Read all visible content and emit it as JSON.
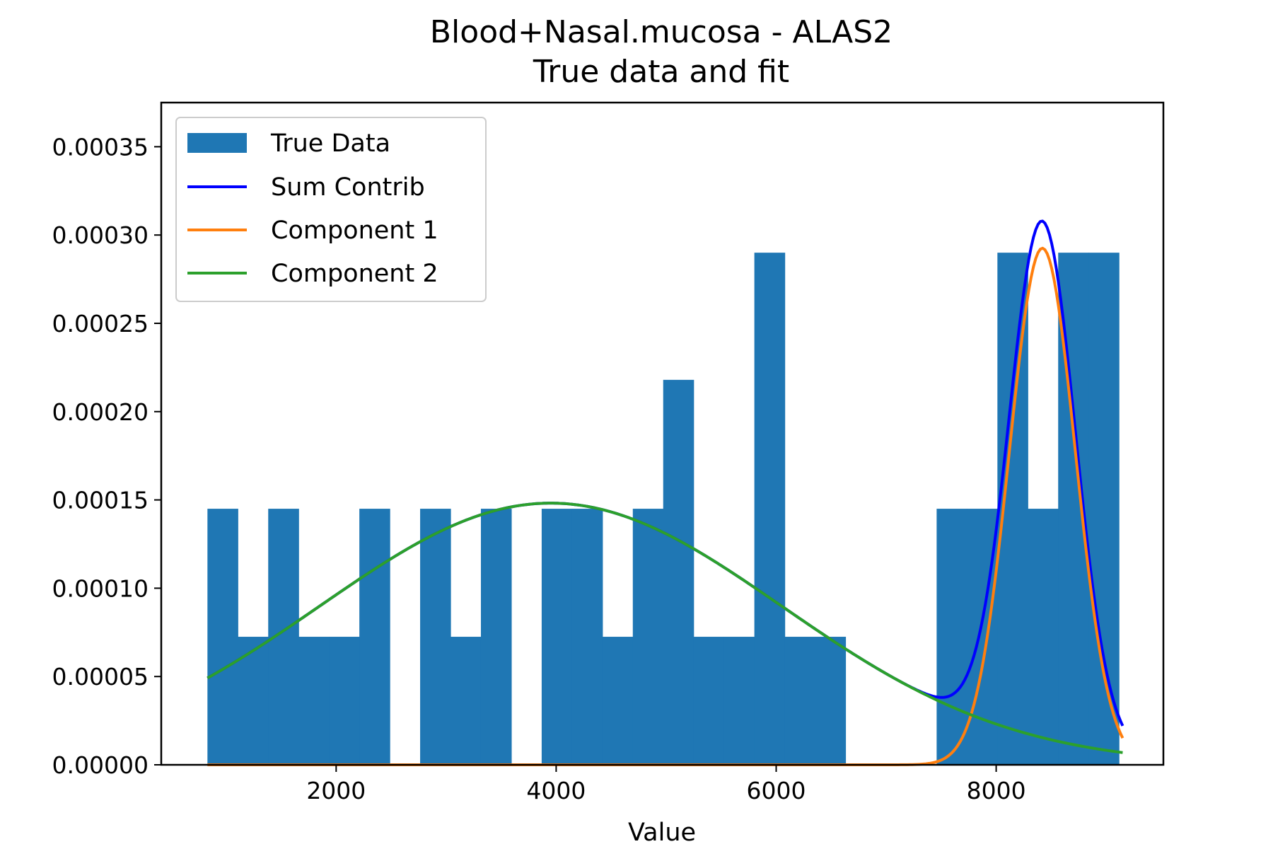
{
  "chart_data": {
    "type": "bar",
    "title": "Blood+Nasal.mucosa - ALAS2",
    "subtitle": "True data and fit",
    "xlabel": "Value",
    "ylabel": "",
    "xlim": [
      410,
      9520
    ],
    "ylim": [
      0,
      0.000375
    ],
    "xticks": [
      2000,
      4000,
      6000,
      8000
    ],
    "xtick_labels": [
      "2000",
      "4000",
      "6000",
      "8000"
    ],
    "yticks": [
      0,
      5e-05,
      0.0001,
      0.00015,
      0.0002,
      0.00025,
      0.0003,
      0.00035
    ],
    "ytick_labels": [
      "0.00000",
      "0.00005",
      "0.00010",
      "0.00015",
      "0.00020",
      "0.00025",
      "0.00030",
      "0.00035"
    ],
    "grid": false,
    "legend_position": "top-left",
    "histogram": {
      "name": "True Data",
      "color": "#1f77b4",
      "bin_start": 830,
      "bin_width": 276.2,
      "values": [
        0.000145,
        7.25e-05,
        0.000145,
        7.25e-05,
        7.25e-05,
        0.000145,
        0,
        0.000145,
        7.25e-05,
        0.000145,
        0,
        0.000145,
        0.000145,
        7.25e-05,
        0.000145,
        0.000218,
        7.25e-05,
        7.25e-05,
        0.00029,
        7.25e-05,
        7.25e-05,
        0,
        0,
        0,
        0.000145,
        0.000145,
        0.00029,
        0.000145,
        0.00029,
        0.00029
      ]
    },
    "series": [
      {
        "name": "Sum Contrib",
        "color": "#0000ff",
        "components": [
          "Component 1",
          "Component 2"
        ]
      },
      {
        "name": "Component 1",
        "color": "#ff7f0e",
        "weight": 0.22,
        "mean": 8420,
        "sd": 300
      },
      {
        "name": "Component 2",
        "color": "#2ca02c",
        "weight": 0.78,
        "mean": 3950,
        "sd": 2100
      }
    ],
    "curve_x_range": [
      830,
      9150
    ]
  }
}
